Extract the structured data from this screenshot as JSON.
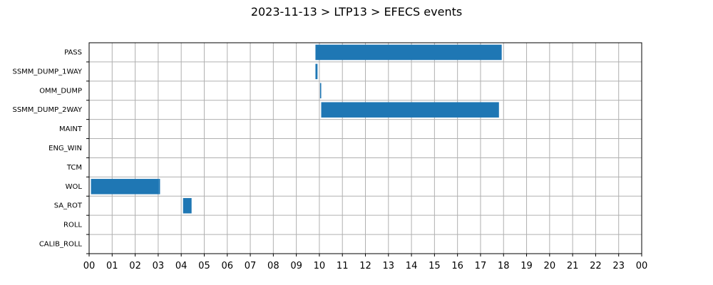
{
  "chart_data": {
    "type": "bar",
    "orientation": "horizontal",
    "title": "2023-11-13 > LTP13 > EFECS events",
    "xlabel": "",
    "ylabel": "",
    "categories": [
      "PASS",
      "SSMM_DUMP_1WAY",
      "OMM_DUMP",
      "SSMM_DUMP_2WAY",
      "MAINT",
      "ENG_WIN",
      "TCM",
      "WOL",
      "SA_ROT",
      "ROLL",
      "CALIB_ROLL"
    ],
    "x_unit": "hour",
    "xlim": [
      0,
      24
    ],
    "x_tick_labels": [
      "00",
      "01",
      "02",
      "03",
      "04",
      "05",
      "06",
      "07",
      "08",
      "09",
      "10",
      "11",
      "12",
      "13",
      "14",
      "15",
      "16",
      "17",
      "18",
      "19",
      "20",
      "21",
      "22",
      "23",
      "00"
    ],
    "grid": true,
    "color": "#1f77b4",
    "events": [
      {
        "category": "PASS",
        "start": 9.83,
        "end": 17.92
      },
      {
        "category": "SSMM_DUMP_1WAY",
        "start": 9.83,
        "end": 9.92
      },
      {
        "category": "OMM_DUMP",
        "start": 10.03,
        "end": 10.08
      },
      {
        "category": "SSMM_DUMP_2WAY",
        "start": 10.08,
        "end": 17.8
      },
      {
        "category": "WOL",
        "start": 0.08,
        "end": 3.03
      },
      {
        "category": "WOL",
        "start": 3.03,
        "end": 3.08
      },
      {
        "category": "SA_ROT",
        "start": 4.08,
        "end": 4.45
      }
    ]
  }
}
